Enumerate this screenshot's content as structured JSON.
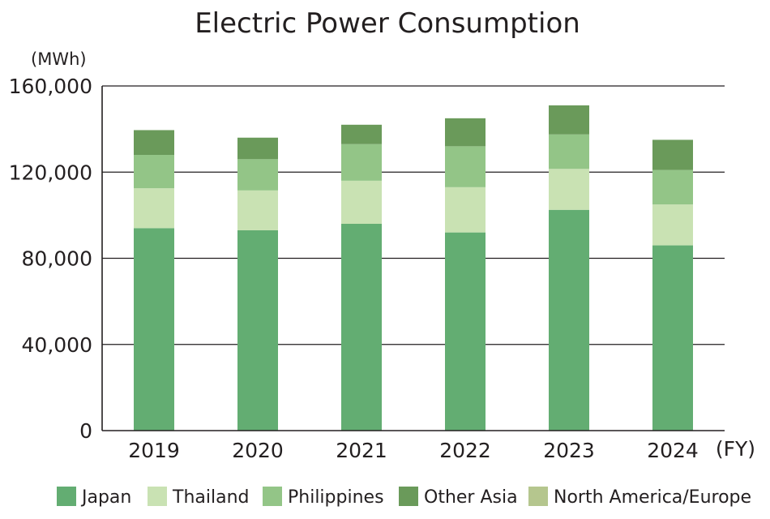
{
  "chart_data": {
    "type": "bar",
    "stacked": true,
    "title": "Electric Power Consumption",
    "ylabel": "(MWh)",
    "xlabel": "(FY)",
    "categories": [
      "2019",
      "2020",
      "2021",
      "2022",
      "2023",
      "2024"
    ],
    "ylim": [
      0,
      160000
    ],
    "yticks": [
      0,
      40000,
      80000,
      120000,
      160000
    ],
    "ytick_labels": [
      "0",
      "40,000",
      "80,000",
      "120,000",
      "160,000"
    ],
    "grid": true,
    "legend_position": "bottom",
    "series": [
      {
        "name": "Japan",
        "color": "#63ad72",
        "values": [
          94000,
          93000,
          96000,
          92000,
          102500,
          86000
        ]
      },
      {
        "name": "Thailand",
        "color": "#c9e2b3",
        "values": [
          18500,
          18500,
          20000,
          21000,
          19000,
          19000
        ]
      },
      {
        "name": "Philippines",
        "color": "#93c587",
        "values": [
          15500,
          14500,
          17000,
          19000,
          16000,
          16000
        ]
      },
      {
        "name": "Other Asia",
        "color": "#6a9a5a",
        "values": [
          11500,
          10000,
          9000,
          13000,
          13500,
          14000
        ]
      },
      {
        "name": "North America/Europe",
        "color": "#b5c68e",
        "values": [
          0,
          0,
          0,
          0,
          0,
          0
        ]
      }
    ]
  }
}
